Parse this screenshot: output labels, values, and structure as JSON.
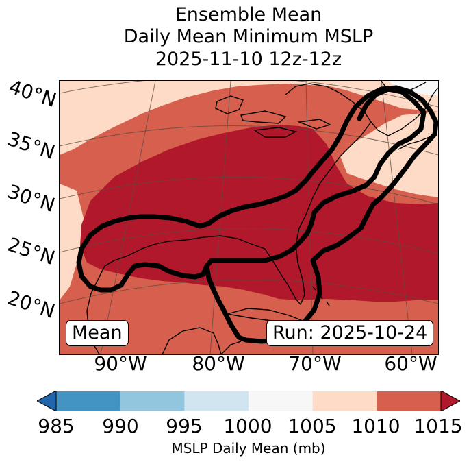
{
  "title": {
    "line1": "Ensemble Mean",
    "line2": "Daily Mean Minimum MSLP",
    "line3": "2025-11-10 12z-12z"
  },
  "map": {
    "lat_labels": [
      "40°N",
      "35°N",
      "30°N",
      "25°N",
      "20°N"
    ],
    "lon_labels": [
      "90°W",
      "80°W",
      "70°W",
      "60°W"
    ],
    "mean_label": "Mean",
    "run_label": "Run: 2025-10-24"
  },
  "colorbar": {
    "ticks": [
      "985",
      "990",
      "995",
      "1000",
      "1005",
      "1010",
      "1015"
    ],
    "axis_label": "MSLP Daily Mean (mb)",
    "bin_colors": [
      "#2166ac",
      "#4393c3",
      "#92c5de",
      "#d1e5f0",
      "#f7f7f7",
      "#fddbc7",
      "#d6604d",
      "#b2182b"
    ]
  },
  "colors": {
    "band_1005_1010": "#fddbc7",
    "band_1010_1015": "#d6604d",
    "band_above_1015": "#b2182b",
    "band_1000_1005": "#f7f7f7",
    "contour": "#000000"
  }
}
